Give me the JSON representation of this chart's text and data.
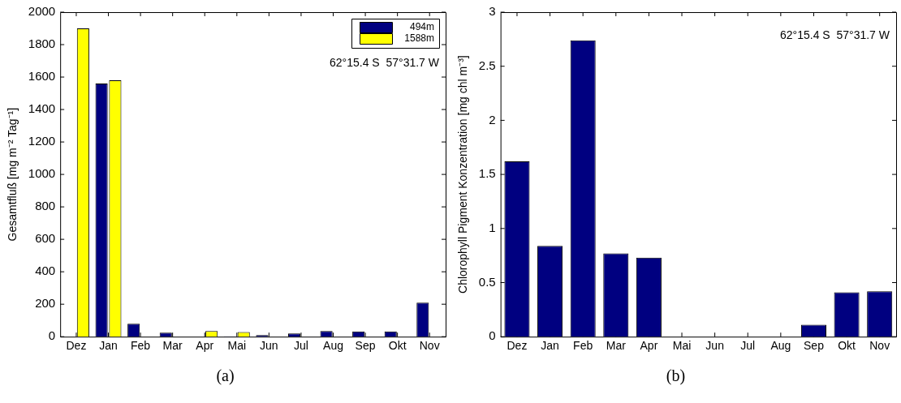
{
  "chart_data": [
    {
      "type": "bar",
      "ylabel": "Gesamtfluß [mg m⁻² Tag⁻¹]",
      "categories": [
        "Dez",
        "Jan",
        "Feb",
        "Mar",
        "Apr",
        "Mai",
        "Jun",
        "Jul",
        "Aug",
        "Sep",
        "Okt",
        "Nov"
      ],
      "series": [
        {
          "name": "494m",
          "color": "#000080",
          "values": [
            0,
            1560,
            80,
            25,
            0,
            2,
            10,
            20,
            35,
            32,
            32,
            210
          ]
        },
        {
          "name": "1588m",
          "color": "#ffff00",
          "values": [
            1900,
            1580,
            null,
            0,
            35,
            28,
            null,
            null,
            0,
            0,
            0,
            0
          ]
        }
      ],
      "ylim": [
        0,
        2000
      ],
      "yticks": [
        0,
        200,
        400,
        600,
        800,
        1000,
        1200,
        1400,
        1600,
        1800,
        2000
      ],
      "legend": "top right",
      "annotations": [
        "62°15.4 S  57°31.7 W",
        "(a)"
      ]
    },
    {
      "type": "bar",
      "ylabel": "Chlorophyll Pigment Konzentration [mg chl m⁻³]",
      "categories": [
        "Dez",
        "Jan",
        "Feb",
        "Mar",
        "Apr",
        "Mai",
        "Jun",
        "Jul",
        "Aug",
        "Sep",
        "Okt",
        "Nov"
      ],
      "series": [
        {
          "color": "#000080",
          "values": [
            1.62,
            0.84,
            2.74,
            0.77,
            0.73,
            0,
            0,
            0,
            0,
            0.11,
            0.41,
            0.42
          ]
        }
      ],
      "ylim": [
        0,
        3
      ],
      "yticks": [
        0,
        0.5,
        1,
        1.5,
        2,
        2.5,
        3
      ],
      "annotations": [
        "62°15.4 S  57°31.7 W",
        "(b)"
      ]
    }
  ]
}
